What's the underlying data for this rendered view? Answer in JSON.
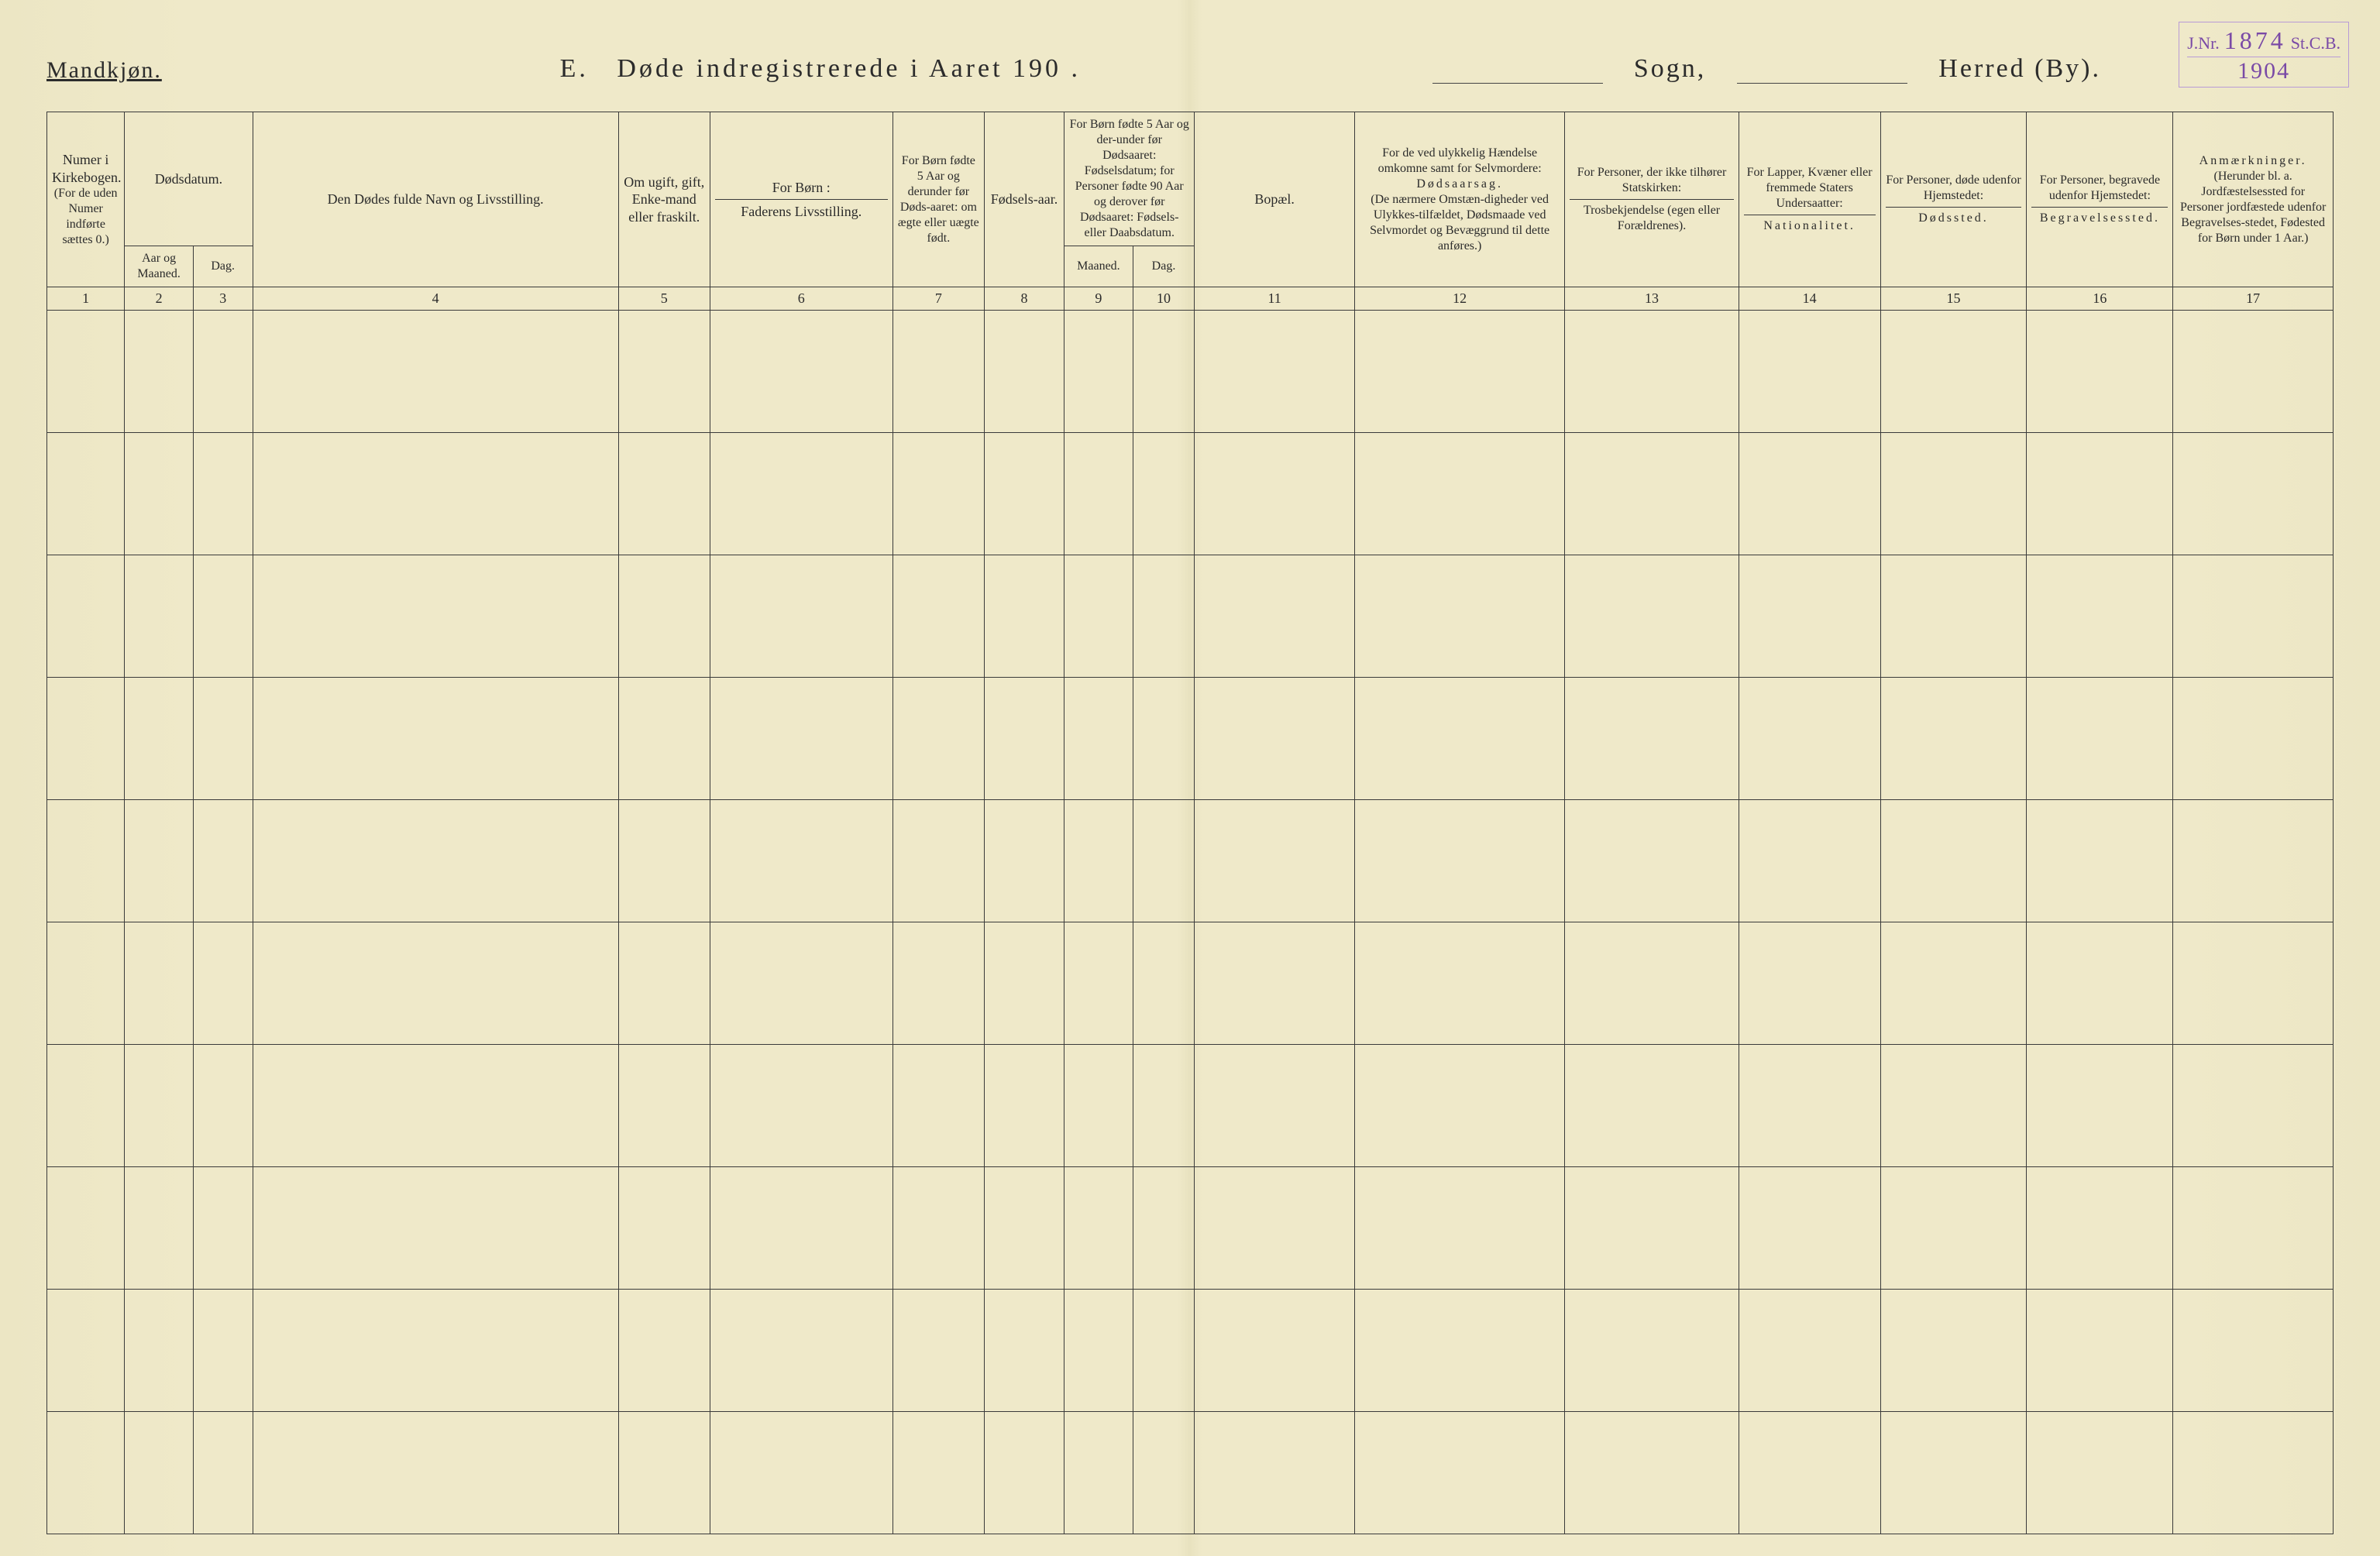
{
  "stamp": {
    "jnr_label": "J.Nr.",
    "jnr_number": "1874",
    "stcb": "St.C.B.",
    "year": "1904",
    "color": "#7a4aa6"
  },
  "header": {
    "mandkjon": "Mandkjøn.",
    "section_letter": "E.",
    "title": "Døde indregistrerede i Aaret 190  .",
    "sogn_label": "Sogn,",
    "herred_label": "Herred (By)."
  },
  "columns": {
    "widths_pct": [
      3.4,
      3.0,
      2.6,
      16.0,
      4.0,
      8.0,
      4.0,
      3.5,
      3.0,
      2.7,
      7.0,
      9.2,
      7.6,
      6.2,
      6.4,
      6.4,
      7.0
    ],
    "col1": {
      "top": "Numer i Kirkebogen.",
      "mid": "(For de uden Numer indførte sættes 0.)"
    },
    "col2_3_group": "Dødsdatum.",
    "col2": "Aar og Maaned.",
    "col3": "Dag.",
    "col4": "Den Dødes fulde Navn og Livsstilling.",
    "col5": "Om ugift, gift, Enke-mand eller fraskilt.",
    "col6_top": "For Børn :",
    "col6_bot": "Faderens Livsstilling.",
    "col7": "For Børn fødte 5 Aar og derunder før Døds-aaret: om ægte eller uægte født.",
    "col8": "Fødsels-aar.",
    "col9_10_top": "For Børn fødte 5 Aar og der-under før Dødsaaret: Fødselsdatum; for Personer fødte 90 Aar og derover før Dødsaaret: Fødsels- eller Daabsdatum.",
    "col9": "Maaned.",
    "col10": "Dag.",
    "col11": "Bopæl.",
    "col12_top": "For de ved ulykkelig Hændelse omkomne samt for Selvmordere:",
    "col12_mid": "Dødsaarsag.",
    "col12_bot": "(De nærmere Omstæn-digheder ved Ulykkes-tilfældet, Dødsmaade ved Selvmordet og Bevæggrund til dette anføres.)",
    "col13_top": "For Personer, der ikke tilhører Statskirken:",
    "col13_bot": "Trosbekjendelse (egen eller Forældrenes).",
    "col14_top": "For Lapper, Kvæner eller fremmede Staters Undersaatter:",
    "col14_bot": "Nationalitet.",
    "col15_top": "For Personer, døde udenfor Hjemstedet:",
    "col15_bot": "Dødssted.",
    "col16_top": "For Personer, begravede udenfor Hjemstedet:",
    "col16_bot": "Begravelsessted.",
    "col17_top": "Anmærkninger.",
    "col17_bot": "(Herunder bl. a. Jordfæstelsessted for Personer jordfæstede udenfor Begravelses-stedet, Fødested for Børn under 1 Aar.)"
  },
  "column_numbers": [
    "1",
    "2",
    "3",
    "4",
    "5",
    "6",
    "7",
    "8",
    "9",
    "10",
    "11",
    "12",
    "13",
    "14",
    "15",
    "16",
    "17"
  ],
  "body_row_count": 10,
  "style": {
    "background": "#efe9c9",
    "border_color": "#3a3a3a",
    "text_color": "#2b2b2b"
  }
}
